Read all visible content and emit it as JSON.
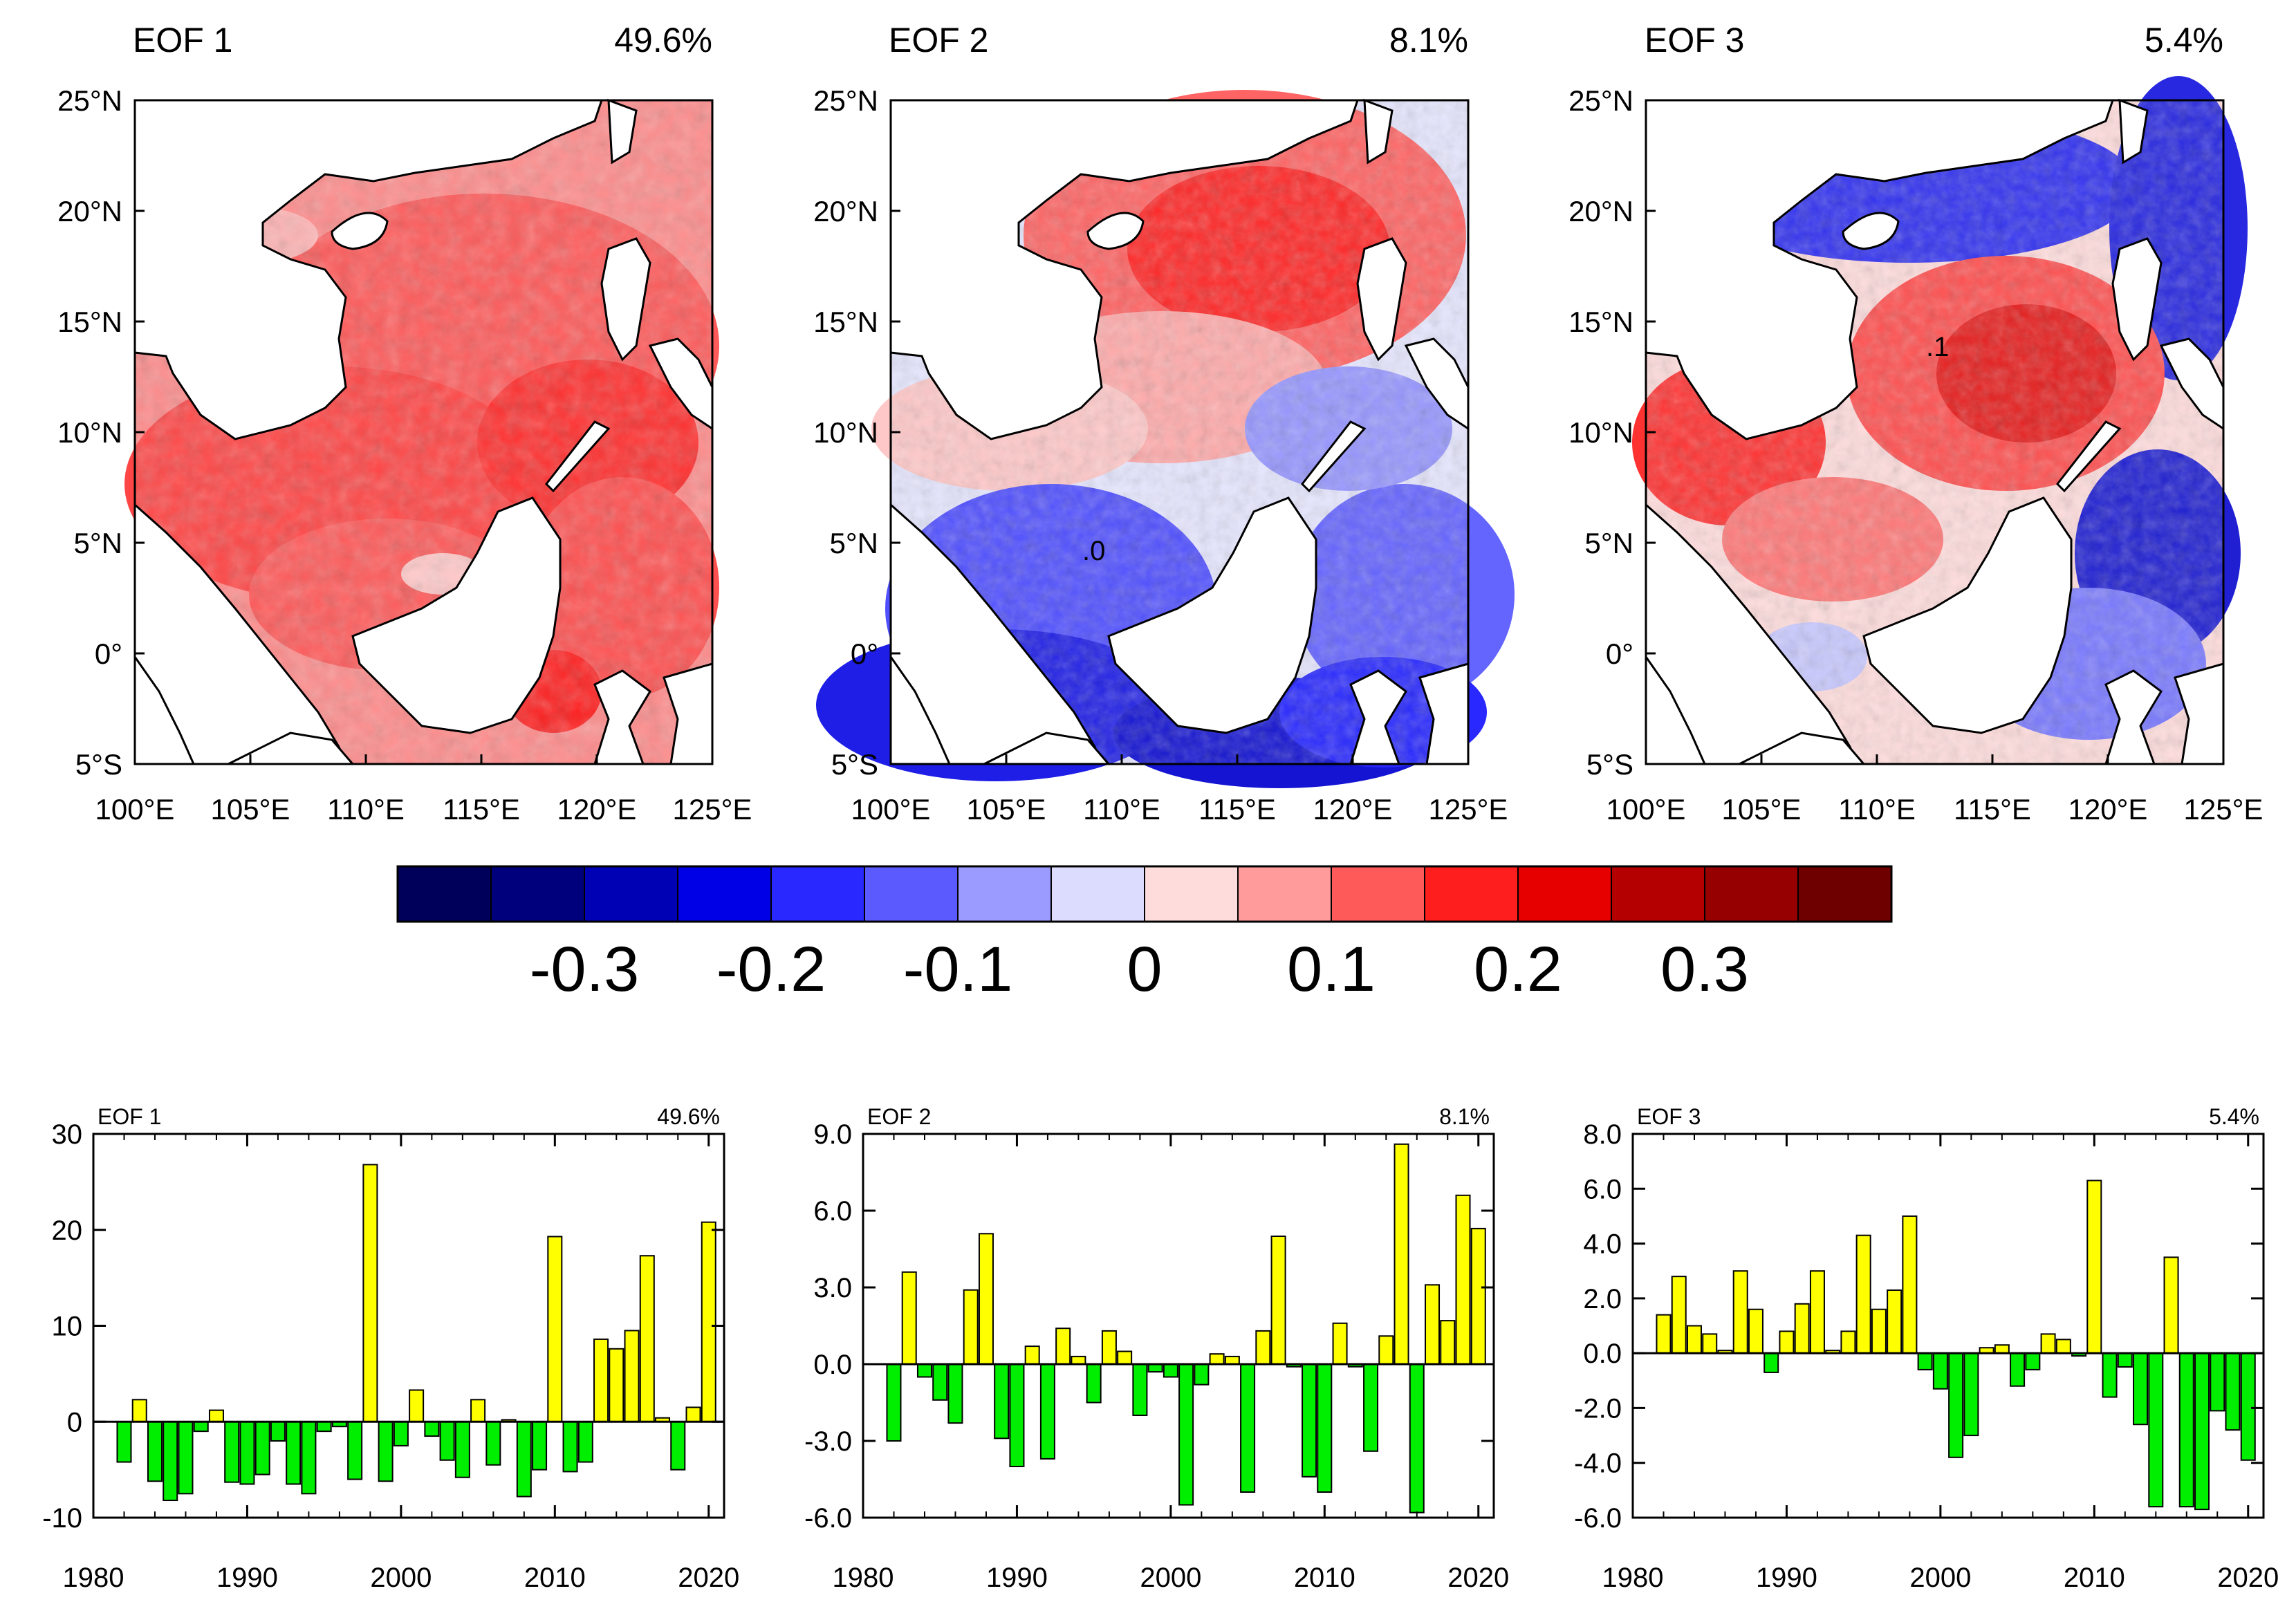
{
  "maps": [
    {
      "title": "EOF 1",
      "variance": "49.6%",
      "contour_label": ""
    },
    {
      "title": "EOF 2",
      "variance": "8.1%",
      "contour_label": ".0"
    },
    {
      "title": "EOF 3",
      "variance": "5.4%",
      "contour_label": ".1"
    }
  ],
  "map_axes": {
    "lat_ticks": [
      "25°N",
      "20°N",
      "15°N",
      "10°N",
      "5°N",
      "0°",
      "5°S"
    ],
    "lon_ticks": [
      "100°E",
      "105°E",
      "110°E",
      "115°E",
      "120°E",
      "125°E"
    ]
  },
  "colorbar": {
    "colors": [
      "#00005a",
      "#00007d",
      "#0000b4",
      "#0000e6",
      "#2828ff",
      "#5a5aff",
      "#9b9bff",
      "#dcdcff",
      "#ffdcdc",
      "#ff9b9b",
      "#ff5a5a",
      "#ff1e1e",
      "#e60000",
      "#b40000",
      "#960000",
      "#6e0000"
    ],
    "labels": [
      "-0.3",
      "-0.2",
      "-0.1",
      "0",
      "0.1",
      "0.2",
      "0.3"
    ]
  },
  "chart_data": [
    {
      "type": "bar",
      "title": "EOF 1",
      "variance": "49.6%",
      "x": [
        1982,
        1983,
        1984,
        1985,
        1986,
        1987,
        1988,
        1989,
        1990,
        1991,
        1992,
        1993,
        1994,
        1995,
        1996,
        1997,
        1998,
        1999,
        2000,
        2001,
        2002,
        2003,
        2004,
        2005,
        2006,
        2007,
        2008,
        2009,
        2010,
        2011,
        2012,
        2013,
        2014,
        2015,
        2016,
        2017,
        2018,
        2019,
        2020
      ],
      "values": [
        -4.2,
        2.3,
        -6.2,
        -8.2,
        -7.5,
        -1.0,
        1.2,
        -6.3,
        -6.5,
        -5.5,
        -2.0,
        -6.5,
        -7.5,
        -1.0,
        -0.5,
        -6.0,
        26.8,
        -6.2,
        -2.5,
        3.3,
        -1.5,
        -4.0,
        -5.8,
        2.3,
        -4.5,
        0.2,
        -7.8,
        -5.0,
        19.3,
        -5.2,
        -4.2,
        8.6,
        7.6,
        9.5,
        17.3,
        0.4,
        -5.0,
        1.5,
        20.8
      ],
      "ylim": [
        -10,
        30
      ],
      "yticks": [
        "-10",
        "0",
        "10",
        "20",
        "30"
      ],
      "xticks": [
        "1980",
        "1990",
        "2000",
        "2010",
        "2020"
      ],
      "xlim": [
        1980,
        2021
      ]
    },
    {
      "type": "bar",
      "title": "EOF 2",
      "variance": "8.1%",
      "x": [
        1982,
        1983,
        1984,
        1985,
        1986,
        1987,
        1988,
        1989,
        1990,
        1991,
        1992,
        1993,
        1994,
        1995,
        1996,
        1997,
        1998,
        1999,
        2000,
        2001,
        2002,
        2003,
        2004,
        2005,
        2006,
        2007,
        2008,
        2009,
        2010,
        2011,
        2012,
        2013,
        2014,
        2015,
        2016,
        2017,
        2018,
        2019,
        2020
      ],
      "values": [
        -3.0,
        3.6,
        -0.5,
        -1.4,
        -2.3,
        2.9,
        5.1,
        -2.9,
        -4.0,
        0.7,
        -3.7,
        1.4,
        0.3,
        -1.5,
        1.3,
        0.5,
        -2.0,
        -0.3,
        -0.5,
        -5.5,
        -0.8,
        0.4,
        0.3,
        -5.0,
        1.3,
        5.0,
        -0.1,
        -4.4,
        -5.0,
        1.6,
        -0.1,
        -3.4,
        1.1,
        8.6,
        -5.8,
        3.1,
        1.7,
        6.6,
        5.3
      ],
      "ylim": [
        -6.0,
        9.0
      ],
      "yticks": [
        "-6.0",
        "-3.0",
        "0.0",
        "3.0",
        "6.0",
        "9.0"
      ],
      "xticks": [
        "1980",
        "1990",
        "2000",
        "2010",
        "2020"
      ],
      "xlim": [
        1980,
        2021
      ]
    },
    {
      "type": "bar",
      "title": "EOF 3",
      "variance": "5.4%",
      "x": [
        1982,
        1983,
        1984,
        1985,
        1986,
        1987,
        1988,
        1989,
        1990,
        1991,
        1992,
        1993,
        1994,
        1995,
        1996,
        1997,
        1998,
        1999,
        2000,
        2001,
        2002,
        2003,
        2004,
        2005,
        2006,
        2007,
        2008,
        2009,
        2010,
        2011,
        2012,
        2013,
        2014,
        2015,
        2016,
        2017,
        2018,
        2019,
        2020
      ],
      "values": [
        1.4,
        2.8,
        1.0,
        0.7,
        0.1,
        3.0,
        1.6,
        -0.7,
        0.8,
        1.8,
        3.0,
        0.1,
        0.8,
        4.3,
        1.6,
        2.3,
        5.0,
        -0.6,
        -1.3,
        -3.8,
        -3.0,
        0.2,
        0.3,
        -1.2,
        -0.6,
        0.7,
        0.5,
        -0.1,
        6.3,
        -1.6,
        -0.5,
        -2.6,
        -5.6,
        3.5,
        -5.6,
        -5.7,
        -2.1,
        -2.8,
        -3.9
      ],
      "ylim": [
        -6.0,
        8.0
      ],
      "yticks": [
        "-6.0",
        "-4.0",
        "-2.0",
        "0.0",
        "2.0",
        "4.0",
        "6.0",
        "8.0"
      ],
      "xticks": [
        "1980",
        "1990",
        "2000",
        "2010",
        "2020"
      ],
      "xlim": [
        1980,
        2021
      ]
    }
  ]
}
